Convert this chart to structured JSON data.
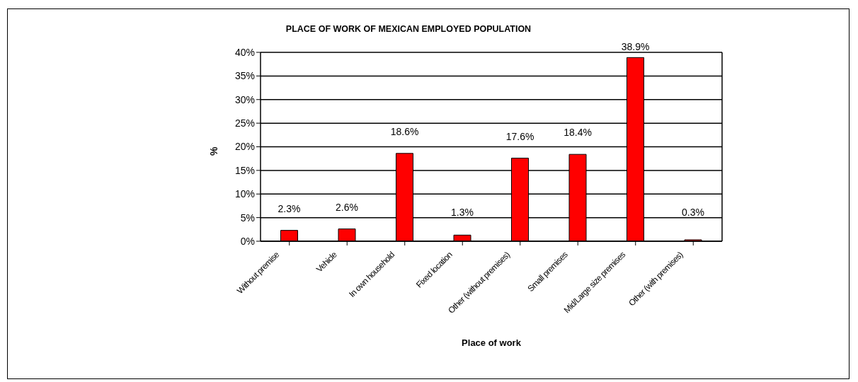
{
  "chart_data": {
    "type": "bar",
    "title": "PLACE OF WORK OF MEXICAN EMPLOYED POPULATION",
    "xlabel": "Place of work",
    "ylabel": "%",
    "categories": [
      "Without premise",
      "Vehicle",
      "In own household",
      "Fixed location",
      "Other (without premises)",
      "Small premises",
      "Mid/Large size premises",
      "Other (with premises)"
    ],
    "values": [
      2.3,
      2.6,
      18.6,
      1.3,
      17.6,
      18.4,
      38.9,
      0.3
    ],
    "color": "#ff0000",
    "value_labels": [
      "2.3%",
      "2.6%",
      "18.6%",
      "1.3%",
      "17.6%",
      "18.4%",
      "38.9%",
      "0.3%"
    ],
    "ylim": [
      0,
      40
    ],
    "yticks": [
      {
        "value": 0,
        "label": "0%"
      },
      {
        "value": 5,
        "label": "5%"
      },
      {
        "value": 10,
        "label": "10%"
      },
      {
        "value": 15,
        "label": "15%"
      },
      {
        "value": 20,
        "label": "20%"
      },
      {
        "value": 25,
        "label": "25%"
      },
      {
        "value": 30,
        "label": "30%"
      },
      {
        "value": 35,
        "label": "35%"
      },
      {
        "value": 40,
        "label": "40%"
      }
    ],
    "grid": "y"
  }
}
